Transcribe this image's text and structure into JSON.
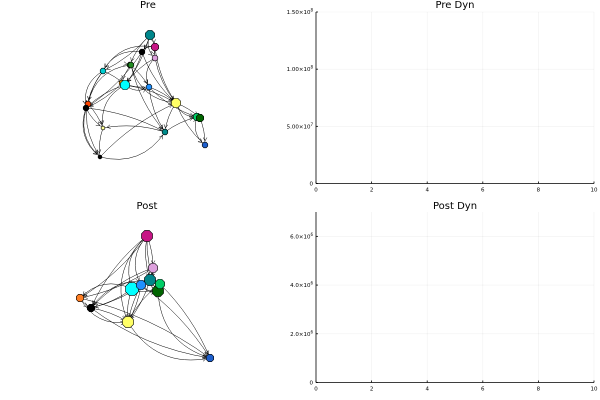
{
  "networks": [
    {
      "title": "Pre",
      "nodes": [
        {
          "color": "#00868b",
          "size": 5
        },
        {
          "color": "#c71585",
          "size": 4
        },
        {
          "color": "#006400",
          "size": 3
        },
        {
          "color": "#dda0dd",
          "size": 3
        },
        {
          "color": "#000000",
          "size": 3
        },
        {
          "color": "#228b22",
          "size": 3
        },
        {
          "color": "#00ced1",
          "size": 3
        },
        {
          "color": "#ffa500",
          "size": 3
        },
        {
          "color": "#00ffff",
          "size": 5
        },
        {
          "color": "#1e90ff",
          "size": 3
        },
        {
          "color": "#ffff66",
          "size": 5
        },
        {
          "color": "#ff4500",
          "size": 3
        },
        {
          "color": "#000000",
          "size": 3
        },
        {
          "color": "#008b8b",
          "size": 3
        },
        {
          "color": "#00cd66",
          "size": 4
        },
        {
          "color": "#006400",
          "size": 4
        },
        {
          "color": "#1e5fcc",
          "size": 3
        },
        {
          "color": "#ffff99",
          "size": 2
        },
        {
          "color": "#000000",
          "size": 2
        }
      ]
    },
    {
      "title": "Post",
      "nodes": [
        {
          "color": "#c71585",
          "size": 6
        },
        {
          "color": "#dda0dd",
          "size": 5
        },
        {
          "color": "#00868b",
          "size": 6
        },
        {
          "color": "#00ffff",
          "size": 7
        },
        {
          "color": "#1e90ff",
          "size": 5
        },
        {
          "color": "#006400",
          "size": 6
        },
        {
          "color": "#00cd66",
          "size": 5
        },
        {
          "color": "#ff7f24",
          "size": 4
        },
        {
          "color": "#000000",
          "size": 4
        },
        {
          "color": "#ffff66",
          "size": 6
        },
        {
          "color": "#1e5fcc",
          "size": 4
        }
      ]
    }
  ],
  "chart_data": [
    {
      "type": "line",
      "title": "Pre Dyn",
      "xlim": [
        0,
        10
      ],
      "ylim": [
        0,
        150000000
      ],
      "x_ticks": [
        "0",
        "2",
        "4",
        "6",
        "8",
        "10"
      ],
      "y_ticks": [
        {
          "mantissa": "0",
          "exp": ""
        },
        {
          "mantissa": "5.00×10",
          "exp": "7"
        },
        {
          "mantissa": "1.00×10",
          "exp": "8"
        },
        {
          "mantissa": "1.50×10",
          "exp": "8"
        }
      ],
      "y_tick_values": [
        0,
        50000000,
        100000000,
        150000000
      ],
      "grid": true,
      "series": []
    },
    {
      "type": "line",
      "title": "Post Dyn",
      "xlim": [
        0,
        10
      ],
      "ylim": [
        0,
        7000000
      ],
      "x_ticks": [
        "0",
        "2",
        "4",
        "6",
        "8",
        "10"
      ],
      "y_ticks": [
        {
          "mantissa": "0",
          "exp": ""
        },
        {
          "mantissa": "2.0×10",
          "exp": "6"
        },
        {
          "mantissa": "4.0×10",
          "exp": "6"
        },
        {
          "mantissa": "6.0×10",
          "exp": "6"
        }
      ],
      "y_tick_values": [
        0,
        2000000,
        4000000,
        6000000
      ],
      "grid": true,
      "series": []
    }
  ]
}
